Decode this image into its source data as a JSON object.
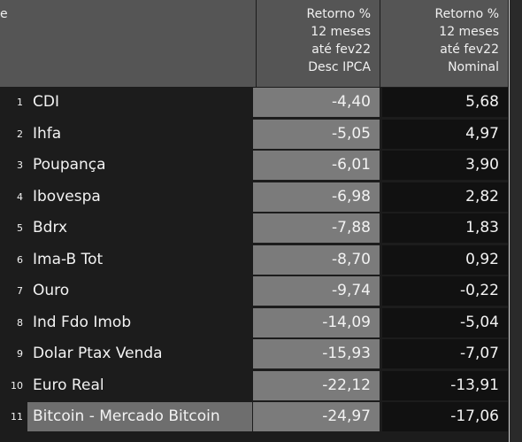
{
  "header": {
    "first": "e",
    "col2": [
      "Retorno %",
      "12 meses",
      "até fev22",
      "Desc IPCA"
    ],
    "col3": [
      "Retorno %",
      "12 meses",
      "até fev22",
      "Nominal"
    ]
  },
  "table": {
    "rows": [
      [
        "1",
        "CDI",
        "-4,40",
        "5,68"
      ],
      [
        "2",
        "Ihfa",
        "-5,05",
        "4,97"
      ],
      [
        "3",
        "Poupança",
        "-6,01",
        "3,90"
      ],
      [
        "4",
        "Ibovespa",
        "-6,98",
        "2,82"
      ],
      [
        "5",
        "Bdrx",
        "-7,88",
        "1,83"
      ],
      [
        "6",
        "Ima-B Tot",
        "-8,70",
        "0,92"
      ],
      [
        "7",
        "Ouro",
        "-9,74",
        "-0,22"
      ],
      [
        "8",
        "Ind Fdo Imob",
        "-14,09",
        "-5,04"
      ],
      [
        "9",
        "Dolar Ptax Venda",
        "-15,93",
        "-7,07"
      ],
      [
        "10",
        "Euro Real",
        "-22,12",
        "-13,91"
      ],
      [
        "11",
        "Bitcoin - Mercado Bitcoin",
        "-24,97",
        "-17,06"
      ]
    ]
  }
}
